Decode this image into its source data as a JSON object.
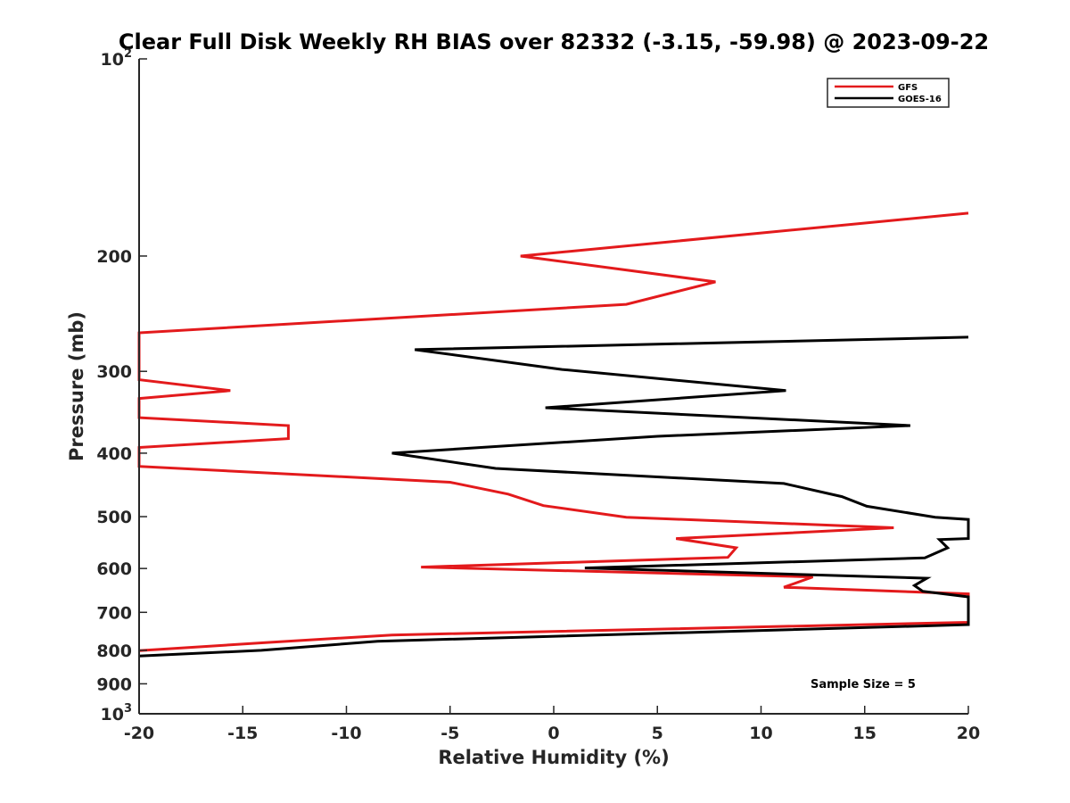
{
  "chart_data": {
    "type": "line",
    "title": "Clear Full Disk Weekly RH BIAS over 82332 (-3.15, -59.98) @ 2023-09-22",
    "xlabel": "Relative Humidity (%)",
    "ylabel": "Pressure (mb)",
    "xlim": [
      -20,
      20
    ],
    "ylim": [
      100,
      1000
    ],
    "yscale": "log",
    "y_reversed": true,
    "x_ticks": [
      -20,
      -15,
      -10,
      -5,
      0,
      5,
      10,
      15,
      20
    ],
    "x_tick_labels": [
      "-20",
      "-15",
      "-10",
      "-5",
      "0",
      "5",
      "10",
      "15",
      "20"
    ],
    "y_ticks": [
      100,
      200,
      300,
      400,
      500,
      600,
      700,
      800,
      900,
      1000
    ],
    "y_tick_labels": [
      {
        "base": "10",
        "exp": "2"
      },
      {
        "base": "200",
        "exp": ""
      },
      {
        "base": "300",
        "exp": ""
      },
      {
        "base": "400",
        "exp": ""
      },
      {
        "base": "500",
        "exp": ""
      },
      {
        "base": "600",
        "exp": ""
      },
      {
        "base": "700",
        "exp": ""
      },
      {
        "base": "800",
        "exp": ""
      },
      {
        "base": "900",
        "exp": ""
      },
      {
        "base": "10",
        "exp": "3"
      }
    ],
    "grid": false,
    "legend_position": "top-right",
    "series": [
      {
        "name": "GFS",
        "color": "#e31a1c",
        "points": [
          {
            "x": 20.0,
            "y": 172
          },
          {
            "x": -1.6,
            "y": 200
          },
          {
            "x": 7.8,
            "y": 219
          },
          {
            "x": 3.5,
            "y": 237
          },
          {
            "x": -20.0,
            "y": 262
          },
          {
            "x": -20.0,
            "y": 309
          },
          {
            "x": -15.6,
            "y": 321
          },
          {
            "x": -20.0,
            "y": 330
          },
          {
            "x": -20.0,
            "y": 353
          },
          {
            "x": -12.8,
            "y": 363
          },
          {
            "x": -12.8,
            "y": 380
          },
          {
            "x": -20.0,
            "y": 392
          },
          {
            "x": -20.0,
            "y": 419
          },
          {
            "x": -5.0,
            "y": 443
          },
          {
            "x": -2.2,
            "y": 462
          },
          {
            "x": -0.5,
            "y": 481
          },
          {
            "x": 3.5,
            "y": 501
          },
          {
            "x": 16.4,
            "y": 520
          },
          {
            "x": 5.9,
            "y": 540
          },
          {
            "x": 8.8,
            "y": 558
          },
          {
            "x": 8.4,
            "y": 577
          },
          {
            "x": -6.4,
            "y": 597
          },
          {
            "x": 12.5,
            "y": 618
          },
          {
            "x": 11.1,
            "y": 641
          },
          {
            "x": 20.0,
            "y": 656
          },
          {
            "x": 20.0,
            "y": 725
          },
          {
            "x": -7.8,
            "y": 758
          },
          {
            "x": -14.0,
            "y": 779
          },
          {
            "x": -20.0,
            "y": 801
          }
        ]
      },
      {
        "name": "GOES-16",
        "color": "#000000",
        "points": [
          {
            "x": 20.0,
            "y": 266
          },
          {
            "x": -6.7,
            "y": 278
          },
          {
            "x": 0.4,
            "y": 298
          },
          {
            "x": 11.2,
            "y": 321
          },
          {
            "x": -0.4,
            "y": 341
          },
          {
            "x": 17.2,
            "y": 363
          },
          {
            "x": 5.0,
            "y": 377
          },
          {
            "x": -7.8,
            "y": 400
          },
          {
            "x": -2.8,
            "y": 422
          },
          {
            "x": 11.1,
            "y": 445
          },
          {
            "x": 13.9,
            "y": 466
          },
          {
            "x": 15.1,
            "y": 482
          },
          {
            "x": 18.4,
            "y": 501
          },
          {
            "x": 20.0,
            "y": 505
          },
          {
            "x": 20.0,
            "y": 540
          },
          {
            "x": 18.6,
            "y": 542
          },
          {
            "x": 19.0,
            "y": 558
          },
          {
            "x": 17.9,
            "y": 578
          },
          {
            "x": 1.5,
            "y": 599
          },
          {
            "x": 18.0,
            "y": 621
          },
          {
            "x": 17.4,
            "y": 637
          },
          {
            "x": 17.8,
            "y": 650
          },
          {
            "x": 20.0,
            "y": 663
          },
          {
            "x": 20.0,
            "y": 731
          },
          {
            "x": -8.5,
            "y": 775
          },
          {
            "x": -14.1,
            "y": 800
          },
          {
            "x": -20.0,
            "y": 816
          }
        ]
      }
    ],
    "annotations": [
      {
        "text": "Sample Size = 5"
      }
    ]
  }
}
